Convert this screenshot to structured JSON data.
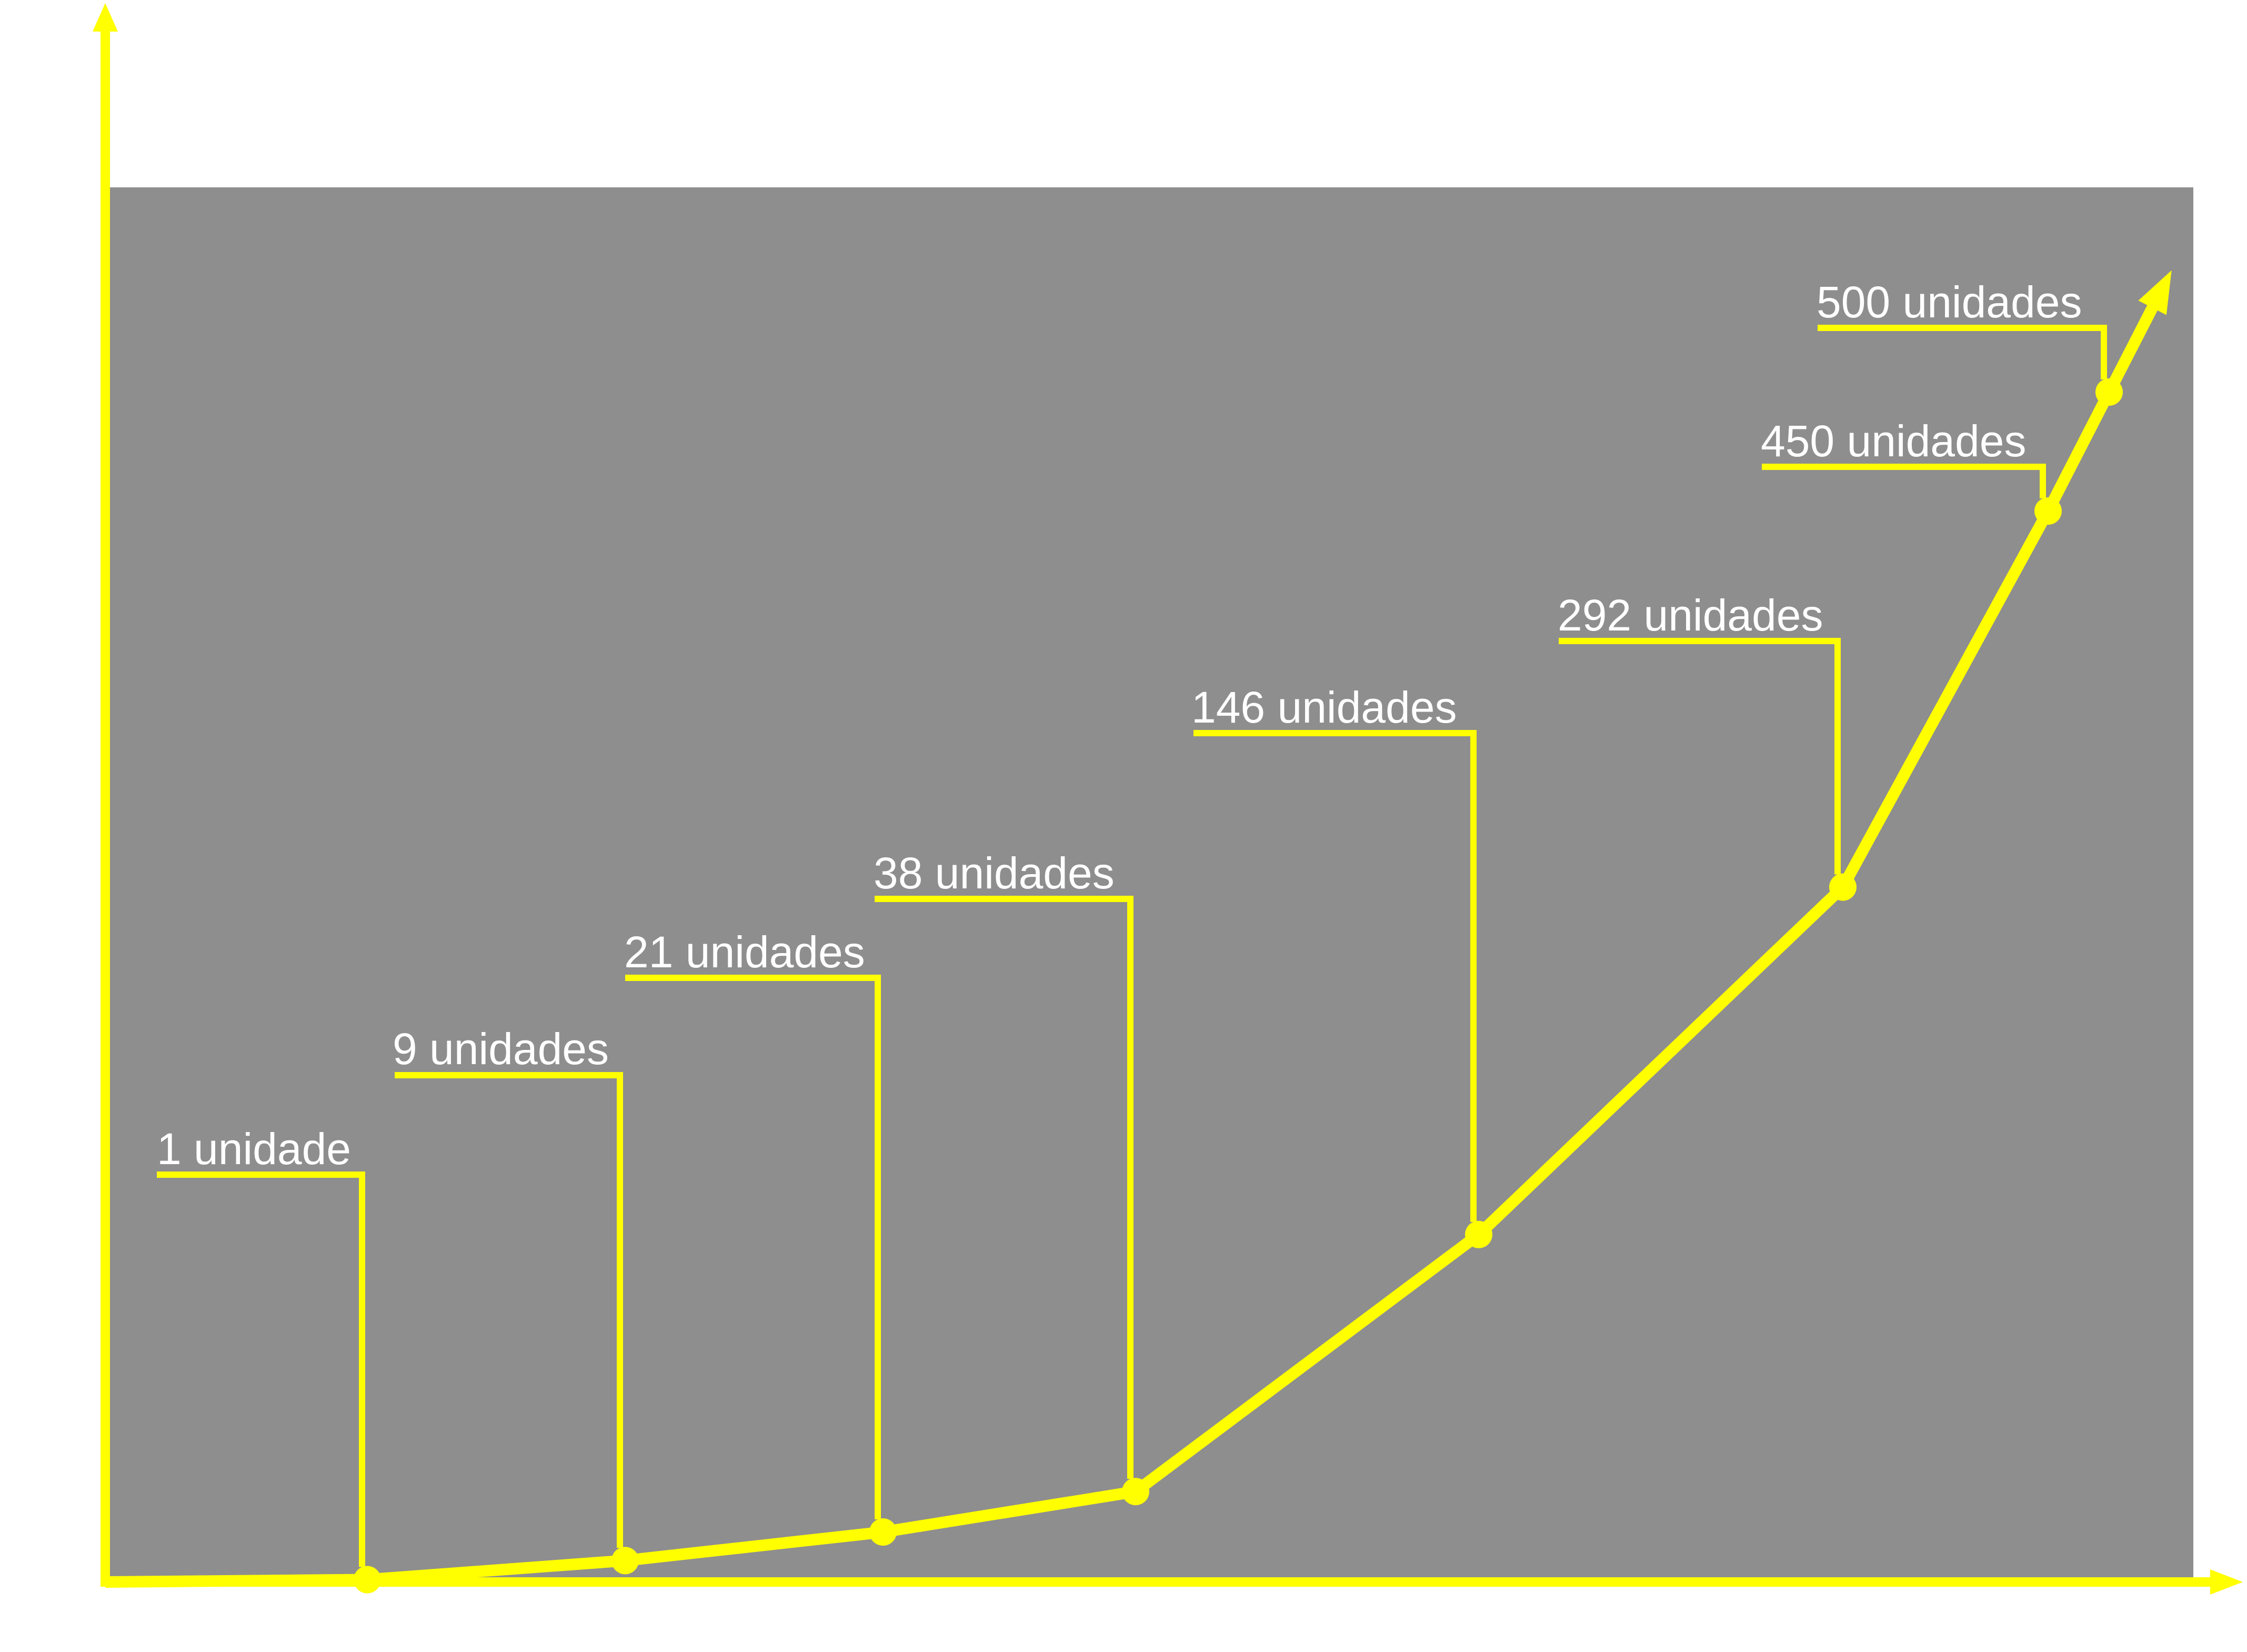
{
  "chart_data": {
    "type": "line",
    "title": "",
    "xlabel": "",
    "ylabel": "",
    "grid": false,
    "legend": "none",
    "series": [
      {
        "values": [
          1,
          9,
          21,
          38,
          146,
          292,
          450,
          500
        ],
        "labels": [
          "1 unidade",
          "9 unidades",
          "21 unidades",
          "38 unidades",
          "146 unidades",
          "292 unidades",
          "450 unidades",
          "500 unidades"
        ]
      }
    ],
    "ylim": [
      0,
      500
    ]
  },
  "colors": {
    "plot_background": "#8e8e8e",
    "line": "#ffff00",
    "axis": "#ffff00",
    "label_text": "#ffffff",
    "page_background": "#ffffff"
  }
}
